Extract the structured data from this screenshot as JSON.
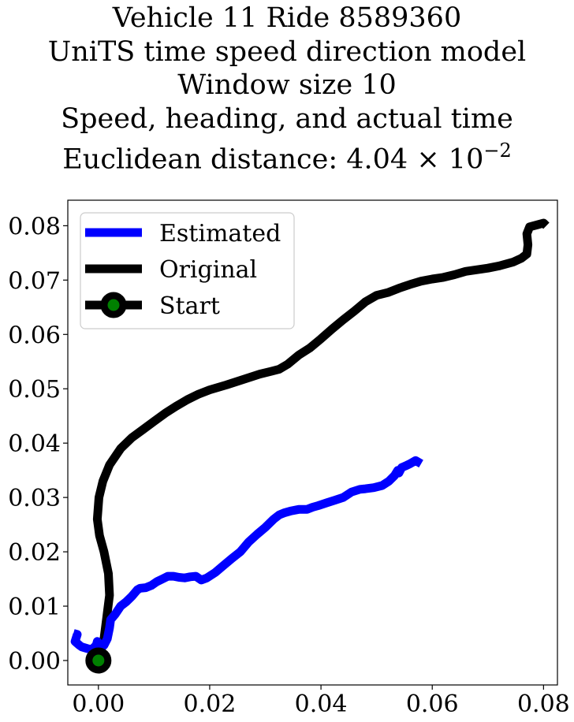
{
  "title": {
    "line1": "Vehicle 11 Ride 8589360",
    "line2": "UniTS time speed direction model",
    "line3": "Window size 10",
    "line4": "Speed, heading, and actual time",
    "line5_prefix": "Euclidean distance: 4.04",
    "line5_times": "×",
    "line5_base": "10",
    "line5_exp": "−2"
  },
  "chart_data": {
    "type": "line",
    "xlim": [
      -0.0055,
      0.0825
    ],
    "ylim": [
      -0.0045,
      0.0847
    ],
    "xticks": [
      0.0,
      0.02,
      0.04,
      0.06,
      0.08
    ],
    "xtick_labels": [
      "0.00",
      "0.02",
      "0.04",
      "0.06",
      "0.08"
    ],
    "yticks": [
      0.0,
      0.01,
      0.02,
      0.03,
      0.04,
      0.05,
      0.06,
      0.07,
      0.08
    ],
    "ytick_labels": [
      "0.00",
      "0.01",
      "0.02",
      "0.03",
      "0.04",
      "0.05",
      "0.06",
      "0.07",
      "0.08"
    ],
    "grid": false,
    "legend_position": "top-left",
    "series": [
      {
        "name": "Estimated",
        "color": "#0000ff",
        "x": [
          -0.0045,
          -0.0038,
          -0.0042,
          -0.0034,
          -0.003,
          -0.002,
          -0.0012,
          -0.0004,
          -0.0002,
          0.0002,
          0.001,
          0.0016,
          0.002,
          0.0022,
          0.003,
          0.004,
          0.005,
          0.006,
          0.007,
          0.0075,
          0.0085,
          0.0095,
          0.0105,
          0.0115,
          0.0125,
          0.0135,
          0.0145,
          0.0155,
          0.0165,
          0.0175,
          0.0185,
          0.0195,
          0.021,
          0.0225,
          0.024,
          0.0255,
          0.027,
          0.0285,
          0.03,
          0.0315,
          0.0325,
          0.0335,
          0.0345,
          0.036,
          0.0375,
          0.0385,
          0.0395,
          0.041,
          0.0425,
          0.044,
          0.0455,
          0.047,
          0.048,
          0.0495,
          0.051,
          0.0522,
          0.0532,
          0.0538,
          0.054,
          0.0545,
          0.0552,
          0.056,
          0.057,
          0.058
        ],
        "y": [
          0.005,
          0.0048,
          0.0035,
          0.0028,
          0.0025,
          0.0022,
          0.002,
          0.0028,
          0.0035,
          0.003,
          0.0028,
          0.004,
          0.006,
          0.0075,
          0.0085,
          0.01,
          0.0108,
          0.0118,
          0.013,
          0.0133,
          0.0134,
          0.0138,
          0.0145,
          0.015,
          0.0155,
          0.0155,
          0.0153,
          0.0152,
          0.0154,
          0.0155,
          0.0148,
          0.0152,
          0.0162,
          0.0175,
          0.0188,
          0.02,
          0.0218,
          0.0232,
          0.0245,
          0.026,
          0.0268,
          0.0272,
          0.0275,
          0.0278,
          0.0278,
          0.0282,
          0.0285,
          0.029,
          0.0295,
          0.03,
          0.031,
          0.0315,
          0.0316,
          0.0318,
          0.0322,
          0.033,
          0.034,
          0.035,
          0.0345,
          0.0355,
          0.0358,
          0.0362,
          0.0368,
          0.0362
        ]
      },
      {
        "name": "Original",
        "color": "#000000",
        "x": [
          0.0,
          0.001,
          0.0015,
          0.002,
          0.0018,
          0.001,
          0.0002,
          -0.0002,
          0.0001,
          0.0008,
          0.002,
          0.004,
          0.006,
          0.008,
          0.01,
          0.012,
          0.014,
          0.016,
          0.018,
          0.02,
          0.023,
          0.026,
          0.029,
          0.031,
          0.0325,
          0.034,
          0.036,
          0.038,
          0.04,
          0.042,
          0.044,
          0.046,
          0.048,
          0.05,
          0.052,
          0.054,
          0.056,
          0.058,
          0.06,
          0.062,
          0.064,
          0.066,
          0.07,
          0.072,
          0.0745,
          0.076,
          0.077,
          0.0772,
          0.077,
          0.0775,
          0.079,
          0.08,
          0.0805
        ],
        "y": [
          0.0,
          0.004,
          0.008,
          0.012,
          0.016,
          0.02,
          0.023,
          0.026,
          0.03,
          0.033,
          0.036,
          0.039,
          0.041,
          0.0425,
          0.044,
          0.0455,
          0.0468,
          0.048,
          0.049,
          0.0498,
          0.0507,
          0.0517,
          0.0527,
          0.0532,
          0.0536,
          0.0545,
          0.0562,
          0.0575,
          0.0592,
          0.061,
          0.0627,
          0.0643,
          0.066,
          0.0672,
          0.0677,
          0.0685,
          0.0692,
          0.0698,
          0.0702,
          0.0705,
          0.071,
          0.0716,
          0.0722,
          0.0726,
          0.0733,
          0.074,
          0.0748,
          0.0765,
          0.0785,
          0.0798,
          0.0802,
          0.0805,
          0.08
        ]
      }
    ],
    "start": {
      "name": "Start",
      "x": 0.0,
      "y": 0.0,
      "edge_color": "#000000",
      "face_color": "#008000"
    }
  }
}
